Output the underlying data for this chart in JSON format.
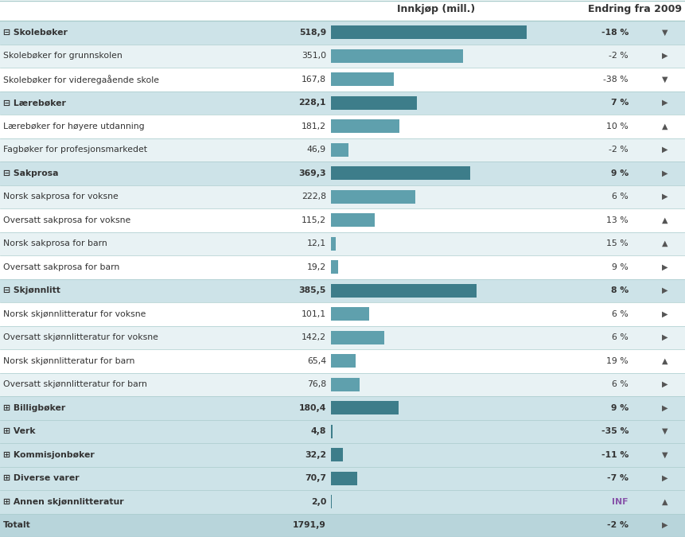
{
  "rows": [
    {
      "label": "⊟ Skolebøker",
      "value": 518.9,
      "change": "-18 %",
      "bold": true,
      "arrow": "down"
    },
    {
      "label": "Skolebøker for grunnskolen",
      "value": 351.0,
      "change": "-2 %",
      "bold": false,
      "arrow": "right"
    },
    {
      "label": "Skolebøker for videregaående skole",
      "value": 167.8,
      "change": "-38 %",
      "bold": false,
      "arrow": "down"
    },
    {
      "label": "⊟ Lærebøker",
      "value": 228.1,
      "change": "7 %",
      "bold": true,
      "arrow": "right"
    },
    {
      "label": "Lærebøker for høyere utdanning",
      "value": 181.2,
      "change": "10 %",
      "bold": false,
      "arrow": "up"
    },
    {
      "label": "Fagbøker for profesjonsmarkedet",
      "value": 46.9,
      "change": "-2 %",
      "bold": false,
      "arrow": "right"
    },
    {
      "label": "⊟ Sakprosa",
      "value": 369.3,
      "change": "9 %",
      "bold": true,
      "arrow": "right"
    },
    {
      "label": "Norsk sakprosa for voksne",
      "value": 222.8,
      "change": "6 %",
      "bold": false,
      "arrow": "right"
    },
    {
      "label": "Oversatt sakprosa for voksne",
      "value": 115.2,
      "change": "13 %",
      "bold": false,
      "arrow": "up"
    },
    {
      "label": "Norsk sakprosa for barn",
      "value": 12.1,
      "change": "15 %",
      "bold": false,
      "arrow": "up"
    },
    {
      "label": "Oversatt sakprosa for barn",
      "value": 19.2,
      "change": "9 %",
      "bold": false,
      "arrow": "right"
    },
    {
      "label": "⊟ Skjønnlitt",
      "value": 385.5,
      "change": "8 %",
      "bold": true,
      "arrow": "right"
    },
    {
      "label": "Norsk skjønnlitteratur for voksne",
      "value": 101.1,
      "change": "6 %",
      "bold": false,
      "arrow": "right"
    },
    {
      "label": "Oversatt skjønnlitteratur for voksne",
      "value": 142.2,
      "change": "6 %",
      "bold": false,
      "arrow": "right"
    },
    {
      "label": "Norsk skjønnlitteratur for barn",
      "value": 65.4,
      "change": "19 %",
      "bold": false,
      "arrow": "up"
    },
    {
      "label": "Oversatt skjønnlitteratur for barn",
      "value": 76.8,
      "change": "6 %",
      "bold": false,
      "arrow": "right"
    },
    {
      "label": "⊞ Billigbøker",
      "value": 180.4,
      "change": "9 %",
      "bold": true,
      "arrow": "right"
    },
    {
      "label": "⊞ Verk",
      "value": 4.8,
      "change": "-35 %",
      "bold": true,
      "arrow": "down"
    },
    {
      "label": "⊞ Kommisjonbøker",
      "value": 32.2,
      "change": "-11 %",
      "bold": true,
      "arrow": "down"
    },
    {
      "label": "⊞ Diverse varer",
      "value": 70.7,
      "change": "-7 %",
      "bold": true,
      "arrow": "right"
    },
    {
      "label": "⊞ Annen skjønnlitteratur",
      "value": 2.0,
      "change": "INF",
      "bold": true,
      "arrow": "up"
    },
    {
      "label": "Totalt",
      "value": 1791.9,
      "change": "-2 %",
      "bold": true,
      "arrow": "right"
    }
  ],
  "header_left": "Innkjøp (mill.)",
  "header_right": "Endring fra 2009",
  "bar_color_bold": "#3d7d8a",
  "bar_color_normal": "#5fa0ad",
  "bar_max_value": 570,
  "bg_white": "#ffffff",
  "bg_light": "#e8f2f4",
  "bg_bold": "#cde3e8",
  "bg_total": "#b8d5db",
  "text_color": "#333333",
  "inf_color": "#8855aa",
  "sep_color": "#aacccc",
  "header_line_color": "#7ab0ba"
}
